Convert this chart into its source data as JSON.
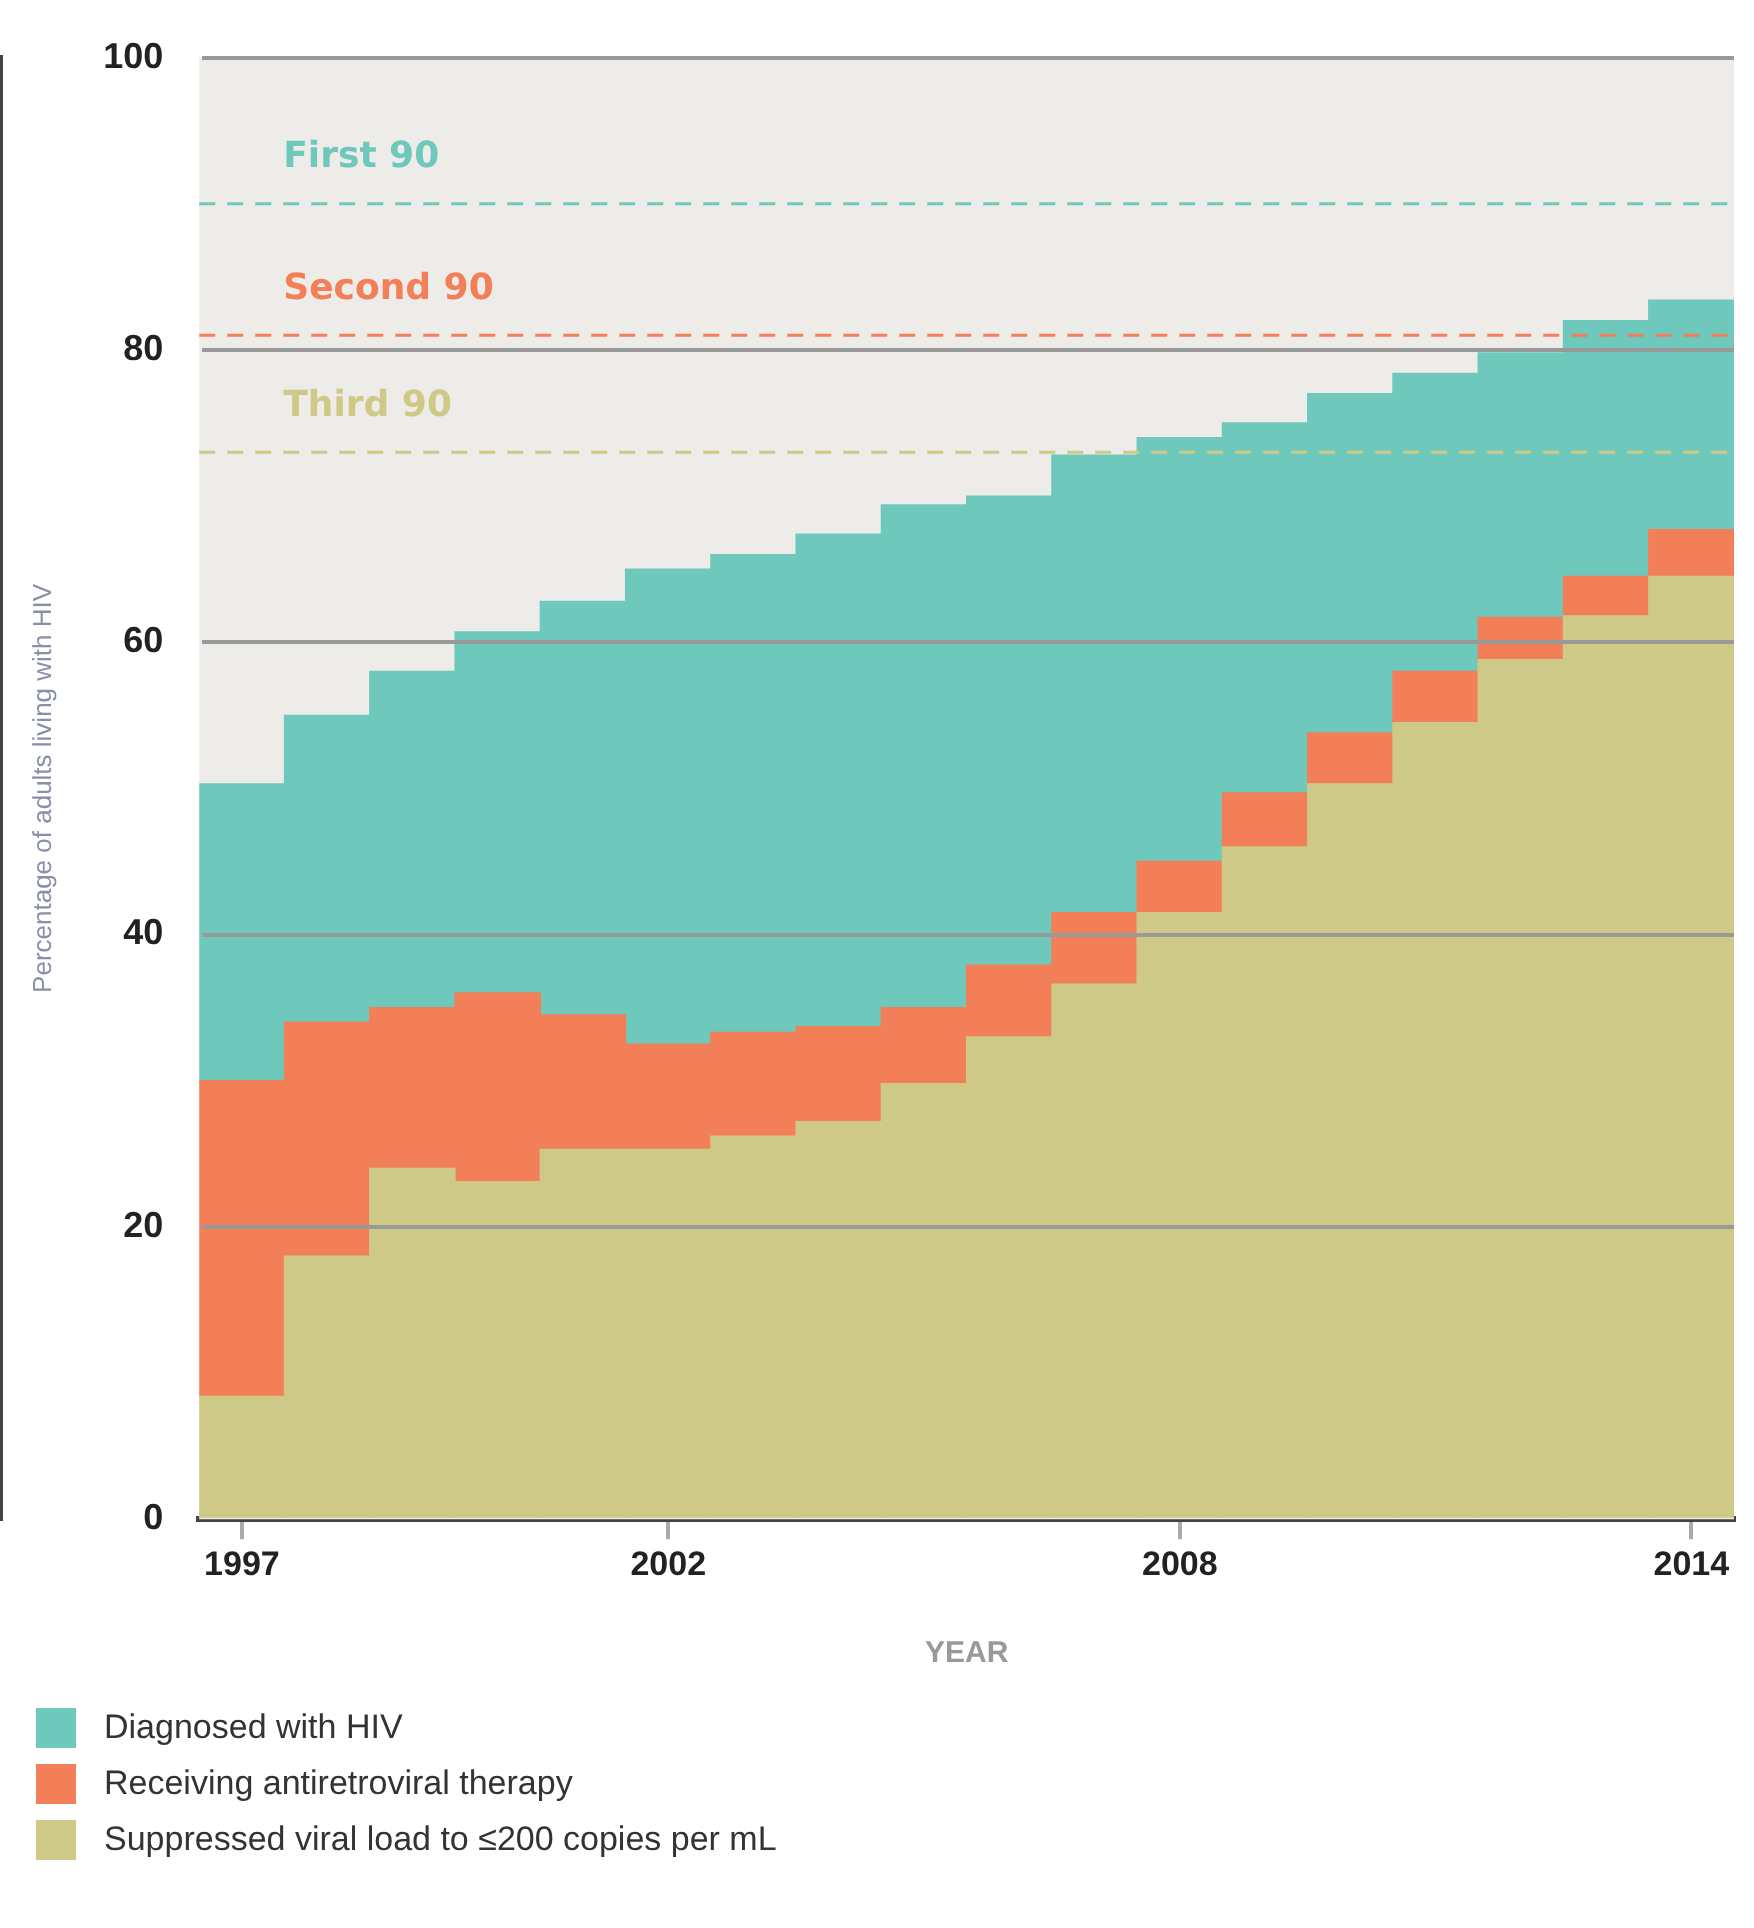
{
  "chart_data": {
    "type": "bar",
    "stacked": true,
    "xlabel": "YEAR",
    "ylabel": "Percentage of adults living with HIV",
    "categories": [
      "1997",
      null,
      null,
      null,
      null,
      "2002",
      null,
      null,
      null,
      null,
      null,
      "2008",
      null,
      null,
      null,
      null,
      null,
      "2014"
    ],
    "series": [
      {
        "name": "Suppressed viral load to ≤200 copies per mL",
        "color": "#cec986",
        "values": [
          8.4,
          18,
          24,
          23.1,
          25.3,
          25.3,
          26.2,
          27.2,
          29.8,
          33,
          36.6,
          41.5,
          46,
          50.3,
          54.5,
          58.8,
          61.8,
          64.5
        ]
      },
      {
        "name": "Receiving antiretroviral therapy",
        "color": "#f27f57",
        "values": [
          21.6,
          16,
          11,
          12.9,
          9.2,
          7.2,
          7.1,
          6.5,
          5.2,
          4.9,
          4.9,
          3.5,
          3.7,
          3.5,
          3.5,
          2.9,
          2.7,
          3.2
        ]
      },
      {
        "name": "Diagnosed with HIV",
        "color": "#6fc8bc",
        "values": [
          20.3,
          21,
          23,
          24.7,
          28.3,
          32.5,
          32.7,
          33.7,
          34.4,
          32.1,
          31.3,
          29,
          25.3,
          23.2,
          20.4,
          18.1,
          17.5,
          15.7
        ]
      }
    ],
    "ylim": [
      0,
      100
    ],
    "yticks": [
      0,
      20,
      40,
      60,
      80,
      100
    ],
    "grid": "y",
    "legend": "bottom left",
    "ref_lines": [
      {
        "axis": "y",
        "value": 90,
        "label": "First 90",
        "color": "#6fc8bc",
        "line_style": "dashed"
      },
      {
        "axis": "y",
        "value": 81,
        "label": "Second 90",
        "color": "#f27f57",
        "line_style": "dashed"
      },
      {
        "axis": "y",
        "value": 73,
        "label": "Third 90",
        "color": "#cec986",
        "line_style": "dashed"
      }
    ]
  }
}
